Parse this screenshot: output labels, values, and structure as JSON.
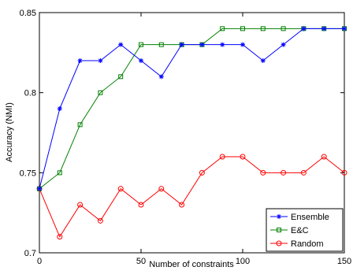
{
  "chart_data": {
    "type": "line",
    "title": "",
    "xlabel": "Number of constraints",
    "ylabel": "Accuracy (NMI)",
    "xlim": [
      0,
      150
    ],
    "ylim": [
      0.7,
      0.85
    ],
    "xticks": [
      0,
      50,
      100,
      150
    ],
    "yticks": [
      0.7,
      0.75,
      0.8,
      0.85
    ],
    "xtick_labels": [
      "0",
      "50",
      "100",
      "150"
    ],
    "ytick_labels": [
      "0.7",
      "0.75",
      "0.8",
      "0.85"
    ],
    "grid": false,
    "legend_position": "bottom-right",
    "x": [
      0,
      10,
      20,
      30,
      40,
      50,
      60,
      70,
      80,
      90,
      100,
      110,
      120,
      130,
      140,
      150
    ],
    "series": [
      {
        "name": "Ensemble",
        "color": "#0000ff",
        "marker": "asterisk",
        "values": [
          0.74,
          0.79,
          0.82,
          0.82,
          0.83,
          0.82,
          0.81,
          0.83,
          0.83,
          0.83,
          0.83,
          0.82,
          0.83,
          0.84,
          0.84,
          0.84
        ]
      },
      {
        "name": "E&C",
        "color": "#008000",
        "marker": "square",
        "values": [
          0.74,
          0.75,
          0.78,
          0.8,
          0.81,
          0.83,
          0.83,
          0.83,
          0.83,
          0.84,
          0.84,
          0.84,
          0.84,
          0.84,
          0.84,
          0.84
        ]
      },
      {
        "name": "Random",
        "color": "#ff0000",
        "marker": "circle",
        "values": [
          0.74,
          0.71,
          0.73,
          0.72,
          0.74,
          0.73,
          0.74,
          0.73,
          0.75,
          0.76,
          0.76,
          0.75,
          0.75,
          0.75,
          0.76,
          0.75
        ]
      }
    ]
  }
}
